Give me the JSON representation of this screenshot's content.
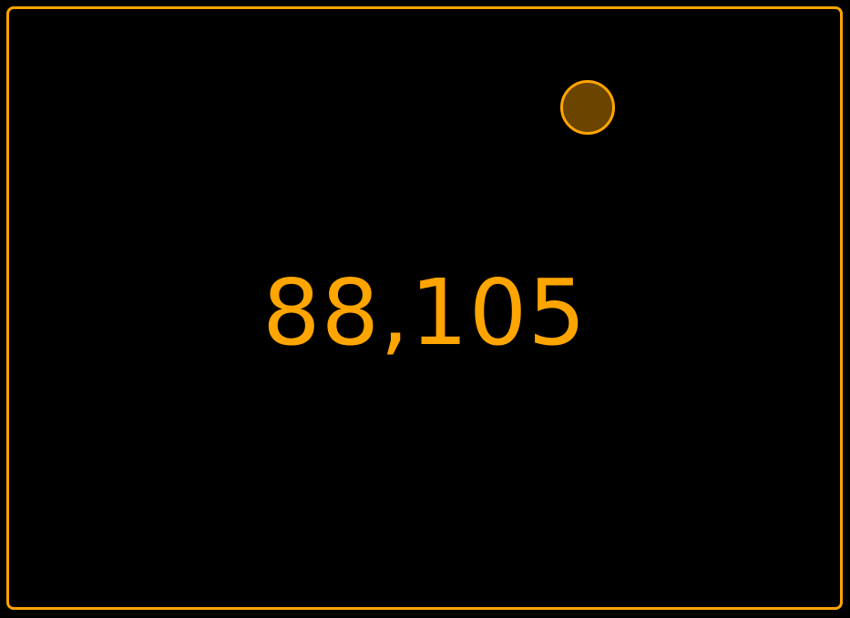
{
  "counter": {
    "value": "88,105"
  },
  "indicator": {
    "icon": "status-dot-icon"
  },
  "colors": {
    "accent": "#FFA500",
    "indicator_fill": "#6B4400",
    "background": "#000000"
  }
}
